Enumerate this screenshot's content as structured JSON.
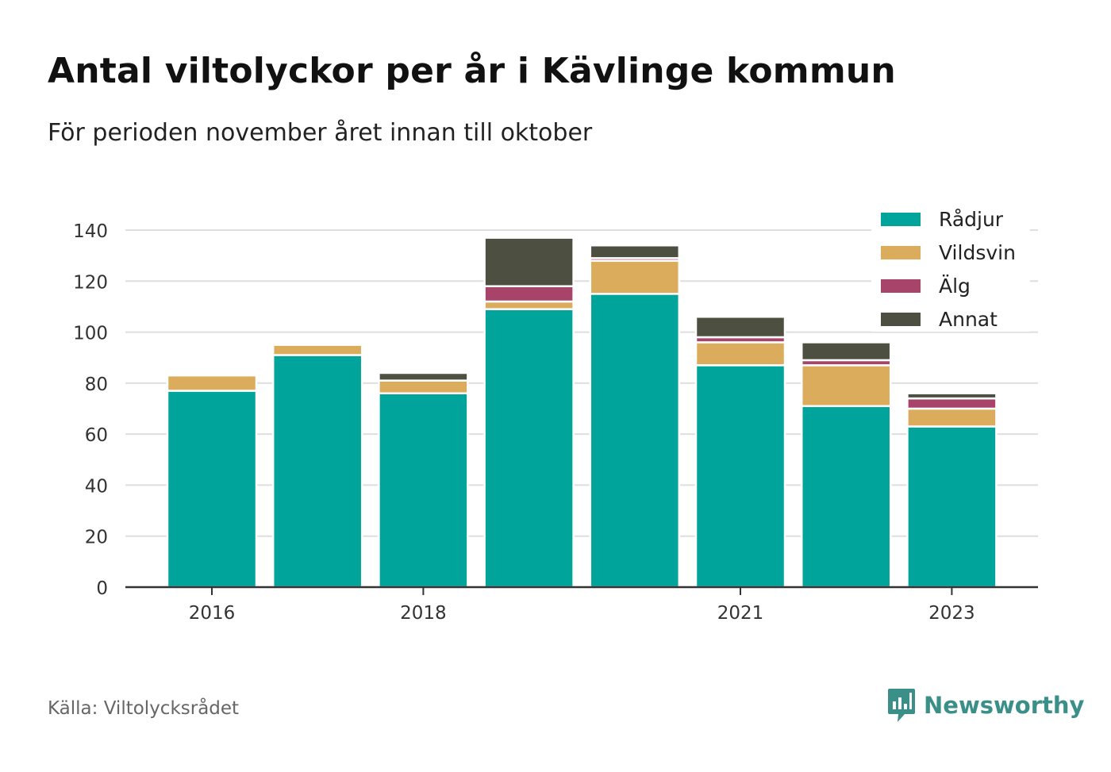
{
  "title": "Antal viltolyckor per år i Kävlinge kommun",
  "subtitle": "För perioden november året innan till oktober",
  "source": "Källa: Viltolycksrådet",
  "brand": "Newsworthy",
  "colors": {
    "Rådjur": "#00a49a",
    "Vildsvin": "#dbac5b",
    "Älg": "#a8436a",
    "Annat": "#4d4f40"
  },
  "chart_data": {
    "type": "bar",
    "stacked": true,
    "categories": [
      "2016",
      "2017",
      "2018",
      "2019",
      "2020",
      "2021",
      "2022",
      "2023"
    ],
    "x_tick_labels": [
      "2016",
      "",
      "2018",
      "",
      "",
      "2021",
      "",
      "2023"
    ],
    "series": [
      {
        "name": "Rådjur",
        "values": [
          77,
          91,
          76,
          109,
          115,
          87,
          71,
          63
        ]
      },
      {
        "name": "Vildsvin",
        "values": [
          6,
          4,
          5,
          3,
          13,
          9,
          16,
          7
        ]
      },
      {
        "name": "Älg",
        "values": [
          0,
          0,
          0,
          6,
          1,
          2,
          2,
          4
        ]
      },
      {
        "name": "Annat",
        "values": [
          0,
          0,
          3,
          19,
          5,
          8,
          7,
          2
        ]
      }
    ],
    "ylim": [
      0,
      140
    ],
    "yticks": [
      0,
      20,
      40,
      60,
      80,
      100,
      120,
      140
    ],
    "grid": true,
    "legend_position": "top-right"
  }
}
